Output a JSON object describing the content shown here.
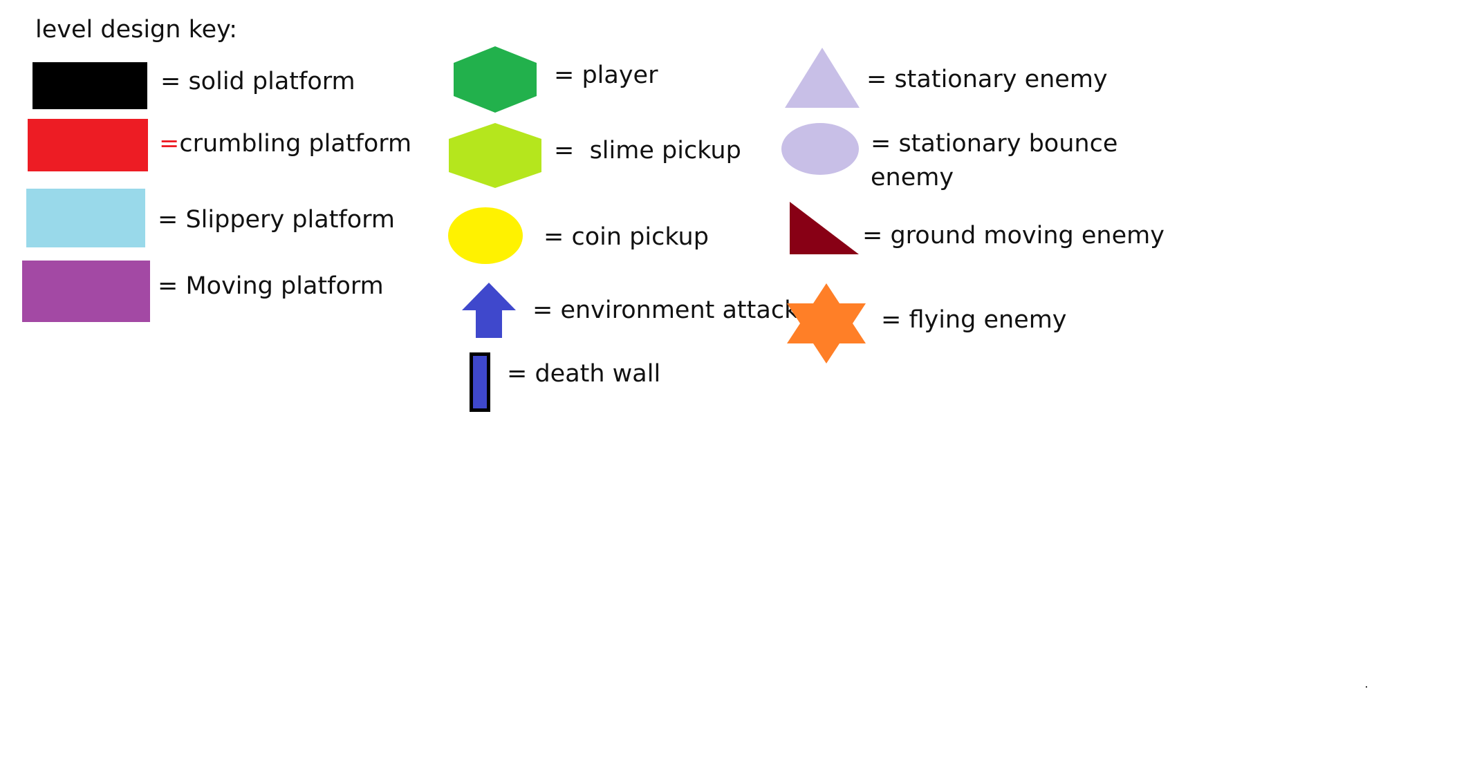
{
  "title": "level design key:",
  "colors": {
    "solid": "#000000",
    "crumbling": "#ed1c24",
    "slippery": "#99d9ea",
    "moving": "#a349a4",
    "player": "#22b14c",
    "slime": "#b5e61d",
    "coin": "#fff200",
    "environment_attack": "#3f48cc",
    "death_wall": "#3f48cc",
    "stationary_enemy": "#c8bfe7",
    "bounce_enemy": "#c8bfe7",
    "ground_enemy": "#880015",
    "flying_enemy": "#ff7f27"
  },
  "legend": {
    "solid_platform": {
      "icon": "black-rectangle-icon",
      "label": "= solid platform"
    },
    "crumbling_platform": {
      "icon": "red-rectangle-icon",
      "eq": "=",
      "label": "crumbling platform"
    },
    "slippery_platform": {
      "icon": "light-blue-rectangle-icon",
      "label": "= Slippery platform"
    },
    "moving_platform": {
      "icon": "purple-rectangle-icon",
      "label": "= Moving platform"
    },
    "player": {
      "icon": "green-hexagon-icon",
      "label": "= player"
    },
    "slime_pickup": {
      "icon": "lime-hexagon-icon",
      "label": "=  slime pickup"
    },
    "coin_pickup": {
      "icon": "yellow-ellipse-icon",
      "label": "= coin pickup"
    },
    "environment_attack": {
      "icon": "blue-up-arrow-icon",
      "label": "= environment attack"
    },
    "death_wall": {
      "icon": "blue-bar-icon",
      "label": "= death wall"
    },
    "stationary_enemy": {
      "icon": "lavender-triangle-icon",
      "label": "= stationary enemy"
    },
    "stationary_bounce_enemy": {
      "icon": "lavender-ellipse-icon",
      "label_line1": "= stationary bounce",
      "label_line2": "enemy"
    },
    "ground_moving_enemy": {
      "icon": "dark-red-right-triangle-icon",
      "label": "= ground moving enemy"
    },
    "flying_enemy": {
      "icon": "orange-star-icon",
      "label": "= flying enemy"
    }
  }
}
